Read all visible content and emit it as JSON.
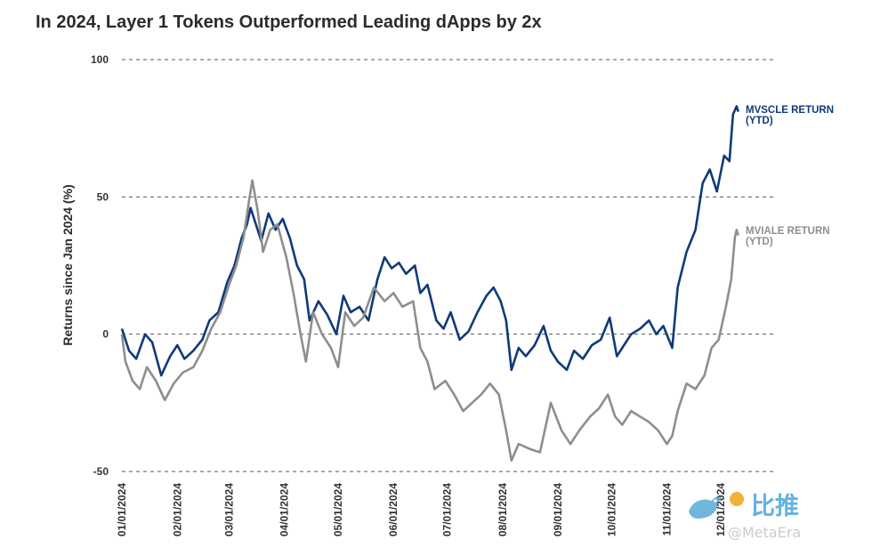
{
  "title": "In 2024, Layer 1 Tokens Outperformed Leading dApps by 2x",
  "watermark": {
    "cn_text": "比推",
    "brand": "@MetaEra"
  },
  "colors": {
    "mvscle": "#0f3a7a",
    "mviale": "#8e8e8e",
    "grid": "#555555",
    "text": "#2b2b2b"
  },
  "chart_data": {
    "type": "line",
    "title": "In 2024, Layer 1 Tokens Outperformed Leading dApps by 2x",
    "xlabel": "",
    "ylabel": "Returns since Jan 2024 (%)",
    "ylim": [
      -50,
      100
    ],
    "yticks": [
      100,
      50,
      0,
      -50
    ],
    "xlim": [
      "01/01/2024",
      "12/31/2024"
    ],
    "xticks": [
      "01/01/2024",
      "02/01/2024",
      "03/01/2024",
      "04/01/2024",
      "05/01/2024",
      "06/01/2024",
      "07/01/2024",
      "08/01/2024",
      "09/01/2024",
      "10/01/2024",
      "11/01/2024",
      "12/01/2024"
    ],
    "grid": "horizontal dashed at y ticks",
    "legend": "inline labels at right end of lines",
    "series": [
      {
        "name": "MVSCLE RETURN (YTD)",
        "label_lines": [
          "MVSCLE RETURN",
          "(YTD)"
        ],
        "color": "#0f3a7a",
        "points": [
          [
            "01/01/2024",
            2
          ],
          [
            "01/05/2024",
            -6
          ],
          [
            "01/09/2024",
            -9
          ],
          [
            "01/14/2024",
            0
          ],
          [
            "01/18/2024",
            -3
          ],
          [
            "01/23/2024",
            -15
          ],
          [
            "01/28/2024",
            -8
          ],
          [
            "02/01/2024",
            -4
          ],
          [
            "02/05/2024",
            -9
          ],
          [
            "02/10/2024",
            -6
          ],
          [
            "02/15/2024",
            -2
          ],
          [
            "02/19/2024",
            5
          ],
          [
            "02/24/2024",
            8
          ],
          [
            "02/29/2024",
            19
          ],
          [
            "03/04/2024",
            25
          ],
          [
            "03/08/2024",
            35
          ],
          [
            "03/11/2024",
            40
          ],
          [
            "03/13/2024",
            46
          ],
          [
            "03/16/2024",
            40
          ],
          [
            "03/19/2024",
            34
          ],
          [
            "03/23/2024",
            44
          ],
          [
            "03/27/2024",
            38
          ],
          [
            "03/31/2024",
            42
          ],
          [
            "04/04/2024",
            35
          ],
          [
            "04/08/2024",
            25
          ],
          [
            "04/12/2024",
            20
          ],
          [
            "04/15/2024",
            5
          ],
          [
            "04/20/2024",
            12
          ],
          [
            "04/25/2024",
            7
          ],
          [
            "04/30/2024",
            0
          ],
          [
            "05/04/2024",
            14
          ],
          [
            "05/08/2024",
            8
          ],
          [
            "05/13/2024",
            10
          ],
          [
            "05/18/2024",
            5
          ],
          [
            "05/23/2024",
            20
          ],
          [
            "05/27/2024",
            28
          ],
          [
            "05/31/2024",
            24
          ],
          [
            "06/04/2024",
            26
          ],
          [
            "06/08/2024",
            22
          ],
          [
            "06/13/2024",
            25
          ],
          [
            "06/16/2024",
            15
          ],
          [
            "06/20/2024",
            18
          ],
          [
            "06/25/2024",
            5
          ],
          [
            "06/29/2024",
            2
          ],
          [
            "07/03/2024",
            8
          ],
          [
            "07/08/2024",
            -2
          ],
          [
            "07/13/2024",
            1
          ],
          [
            "07/18/2024",
            8
          ],
          [
            "07/23/2024",
            14
          ],
          [
            "07/27/2024",
            17
          ],
          [
            "07/31/2024",
            12
          ],
          [
            "08/03/2024",
            5
          ],
          [
            "08/06/2024",
            -13
          ],
          [
            "08/10/2024",
            -5
          ],
          [
            "08/14/2024",
            -8
          ],
          [
            "08/19/2024",
            -4
          ],
          [
            "08/24/2024",
            3
          ],
          [
            "08/28/2024",
            -6
          ],
          [
            "09/01/2024",
            -10
          ],
          [
            "09/06/2024",
            -13
          ],
          [
            "09/10/2024",
            -6
          ],
          [
            "09/15/2024",
            -9
          ],
          [
            "09/20/2024",
            -4
          ],
          [
            "09/25/2024",
            -2
          ],
          [
            "09/30/2024",
            6
          ],
          [
            "10/04/2024",
            -8
          ],
          [
            "10/08/2024",
            -4
          ],
          [
            "10/12/2024",
            0
          ],
          [
            "10/17/2024",
            2
          ],
          [
            "10/22/2024",
            5
          ],
          [
            "10/26/2024",
            0
          ],
          [
            "10/30/2024",
            3
          ],
          [
            "11/04/2024",
            -5
          ],
          [
            "11/07/2024",
            17
          ],
          [
            "11/12/2024",
            30
          ],
          [
            "11/17/2024",
            38
          ],
          [
            "11/21/2024",
            55
          ],
          [
            "11/25/2024",
            60
          ],
          [
            "11/29/2024",
            52
          ],
          [
            "12/03/2024",
            65
          ],
          [
            "12/06/2024",
            63
          ],
          [
            "12/08/2024",
            80
          ],
          [
            "12/10/2024",
            83
          ],
          [
            "12/11/2024",
            81
          ]
        ]
      },
      {
        "name": "MVIALE RETURN (YTD)",
        "label_lines": [
          "MVIALE RETURN",
          "(YTD)"
        ],
        "color": "#8e8e8e",
        "points": [
          [
            "01/01/2024",
            0
          ],
          [
            "01/03/2024",
            -10
          ],
          [
            "01/07/2024",
            -17
          ],
          [
            "01/11/2024",
            -20
          ],
          [
            "01/15/2024",
            -12
          ],
          [
            "01/20/2024",
            -17
          ],
          [
            "01/25/2024",
            -24
          ],
          [
            "01/30/2024",
            -18
          ],
          [
            "02/04/2024",
            -14
          ],
          [
            "02/10/2024",
            -12
          ],
          [
            "02/15/2024",
            -6
          ],
          [
            "02/20/2024",
            2
          ],
          [
            "02/25/2024",
            8
          ],
          [
            "03/01/2024",
            18
          ],
          [
            "03/05/2024",
            25
          ],
          [
            "03/09/2024",
            35
          ],
          [
            "03/12/2024",
            48
          ],
          [
            "03/14/2024",
            56
          ],
          [
            "03/17/2024",
            45
          ],
          [
            "03/20/2024",
            30
          ],
          [
            "03/24/2024",
            38
          ],
          [
            "03/28/2024",
            40
          ],
          [
            "04/02/2024",
            28
          ],
          [
            "04/06/2024",
            15
          ],
          [
            "04/10/2024",
            0
          ],
          [
            "04/13/2024",
            -10
          ],
          [
            "04/17/2024",
            8
          ],
          [
            "04/22/2024",
            0
          ],
          [
            "04/27/2024",
            -5
          ],
          [
            "05/01/2024",
            -12
          ],
          [
            "05/05/2024",
            8
          ],
          [
            "05/10/2024",
            3
          ],
          [
            "05/15/2024",
            6
          ],
          [
            "05/21/2024",
            17
          ],
          [
            "05/27/2024",
            12
          ],
          [
            "06/01/2024",
            15
          ],
          [
            "06/06/2024",
            10
          ],
          [
            "06/12/2024",
            12
          ],
          [
            "06/16/2024",
            -5
          ],
          [
            "06/20/2024",
            -10
          ],
          [
            "06/24/2024",
            -20
          ],
          [
            "06/30/2024",
            -17
          ],
          [
            "07/05/2024",
            -22
          ],
          [
            "07/10/2024",
            -28
          ],
          [
            "07/15/2024",
            -25
          ],
          [
            "07/20/2024",
            -22
          ],
          [
            "07/25/2024",
            -18
          ],
          [
            "07/30/2024",
            -22
          ],
          [
            "08/03/2024",
            -35
          ],
          [
            "08/06/2024",
            -46
          ],
          [
            "08/10/2024",
            -40
          ],
          [
            "08/17/2024",
            -42
          ],
          [
            "08/22/2024",
            -43
          ],
          [
            "08/28/2024",
            -25
          ],
          [
            "09/03/2024",
            -35
          ],
          [
            "09/08/2024",
            -40
          ],
          [
            "09/13/2024",
            -35
          ],
          [
            "09/19/2024",
            -30
          ],
          [
            "09/24/2024",
            -27
          ],
          [
            "09/29/2024",
            -22
          ],
          [
            "10/03/2024",
            -30
          ],
          [
            "10/07/2024",
            -33
          ],
          [
            "10/12/2024",
            -28
          ],
          [
            "10/17/2024",
            -30
          ],
          [
            "10/22/2024",
            -32
          ],
          [
            "10/27/2024",
            -35
          ],
          [
            "11/01/2024",
            -40
          ],
          [
            "11/04/2024",
            -37
          ],
          [
            "11/07/2024",
            -28
          ],
          [
            "11/12/2024",
            -18
          ],
          [
            "11/17/2024",
            -20
          ],
          [
            "11/22/2024",
            -15
          ],
          [
            "11/26/2024",
            -5
          ],
          [
            "11/30/2024",
            -2
          ],
          [
            "12/04/2024",
            10
          ],
          [
            "12/07/2024",
            20
          ],
          [
            "12/09/2024",
            35
          ],
          [
            "12/10/2024",
            38
          ],
          [
            "12/11/2024",
            36
          ]
        ]
      }
    ]
  }
}
